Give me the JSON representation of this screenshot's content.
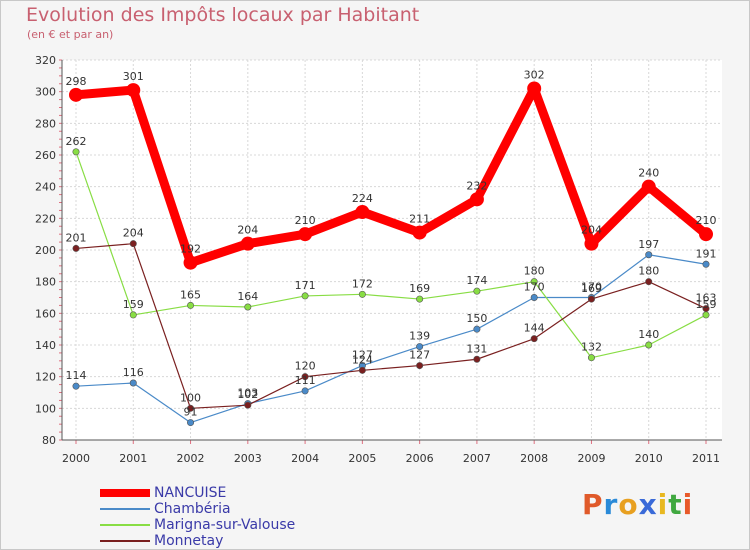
{
  "header": {
    "title": "Evolution des Impôts locaux par Habitant",
    "subtitle": "(en € et par an)"
  },
  "logo": {
    "text": "Proxiti",
    "letters": [
      {
        "ch": "P",
        "color": "#e05a2a"
      },
      {
        "ch": "r",
        "color": "#2a8ad8"
      },
      {
        "ch": "o",
        "color": "#e8a020"
      },
      {
        "ch": "x",
        "color": "#3a6ad8"
      },
      {
        "ch": "i",
        "color": "#e8b820"
      },
      {
        "ch": "t",
        "color": "#40a840"
      },
      {
        "ch": "i",
        "color": "#e85a2a"
      }
    ]
  },
  "chart_data": {
    "type": "line",
    "title": "Evolution des Impôts locaux par Habitant",
    "subtitle": "(en € et par an)",
    "xlabel": "",
    "ylabel": "",
    "x": [
      "2000",
      "2001",
      "2002",
      "2003",
      "2004",
      "2005",
      "2006",
      "2007",
      "2008",
      "2009",
      "2010",
      "2011"
    ],
    "ylim": [
      80,
      320
    ],
    "yticks": [
      80,
      100,
      120,
      140,
      160,
      180,
      200,
      220,
      240,
      260,
      280,
      300,
      320
    ],
    "grid": true,
    "legend_position": "bottom-left",
    "series": [
      {
        "name": "NANCUISE",
        "color": "#ff0000",
        "values": [
          298,
          301,
          192,
          204,
          210,
          224,
          211,
          232,
          302,
          204,
          240,
          210
        ],
        "labels": [
          "298",
          "301",
          "192",
          "204",
          "210",
          "224",
          "211",
          "232",
          "302",
          "204",
          "240",
          "210"
        ]
      },
      {
        "name": "Chambéria",
        "color": "#4a8ac8",
        "values": [
          114,
          116,
          91,
          103,
          111,
          127,
          139,
          150,
          170,
          170,
          197,
          191
        ],
        "labels": [
          "114",
          "116",
          "91",
          "103",
          "111",
          "127",
          "139",
          "150",
          "170",
          "170",
          "197",
          "191"
        ]
      },
      {
        "name": "Marigna-sur-Valouse",
        "color": "#88dd44",
        "values": [
          262,
          159,
          165,
          164,
          171,
          172,
          169,
          174,
          180,
          132,
          140,
          159
        ],
        "labels": [
          "262",
          "159",
          "165",
          "164",
          "171",
          "172",
          "169",
          "174",
          "180",
          "132",
          "140",
          "159"
        ]
      },
      {
        "name": "Monnetay",
        "color": "#7a2020",
        "values": [
          201,
          204,
          100,
          102,
          120,
          124,
          127,
          131,
          144,
          169,
          180,
          163
        ],
        "labels": [
          "201",
          "204",
          "100",
          "102",
          "120",
          "124",
          "127",
          "131",
          "144",
          "169",
          "180",
          "163"
        ]
      }
    ]
  }
}
